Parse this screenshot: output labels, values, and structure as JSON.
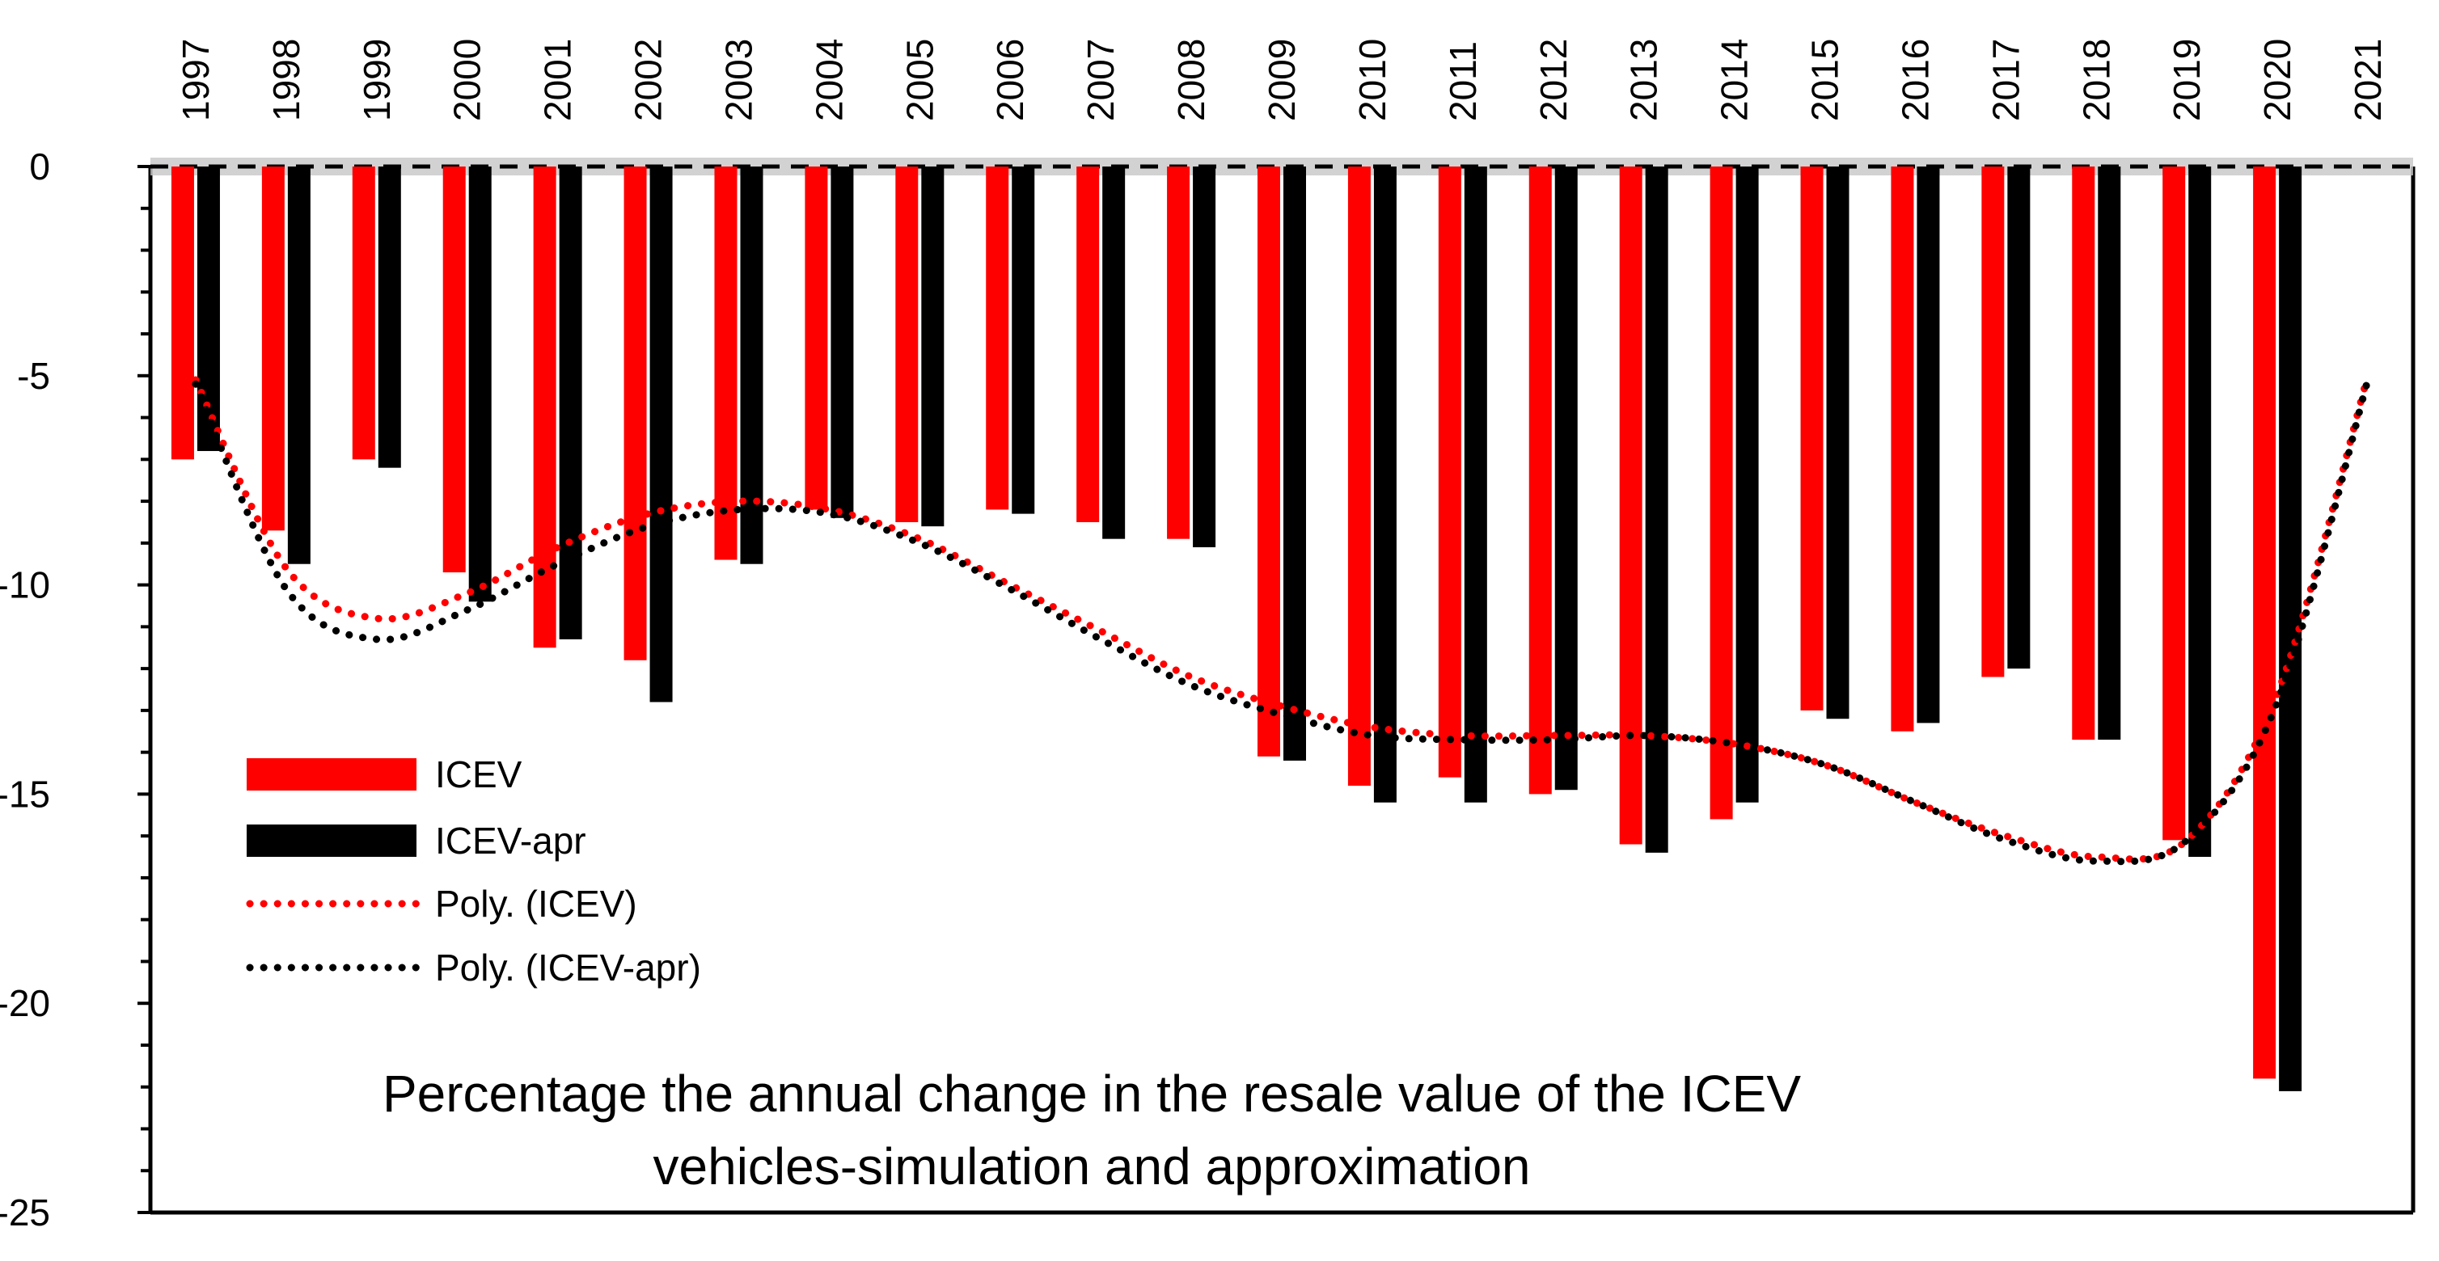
{
  "chart_data": {
    "type": "bar",
    "title": "Percentage the annual change in the resale value of the ICEV vehicles-simulation and approximation",
    "title_lines": [
      "Percentage the annual change in the resale value of the ICEV",
      "vehicles-simulation and approximation"
    ],
    "categories": [
      "1997",
      "1998",
      "1999",
      "2000",
      "2001",
      "2002",
      "2003",
      "2004",
      "2005",
      "2006",
      "2007",
      "2008",
      "2009",
      "2010",
      "2011",
      "2012",
      "2013",
      "2014",
      "2015",
      "2016",
      "2017",
      "2018",
      "2019",
      "2020",
      "2021"
    ],
    "ylim": [
      -25,
      0
    ],
    "yticks": [
      0,
      -5,
      -10,
      -15,
      -20,
      -25
    ],
    "ytick_labels": [
      "0",
      "-5",
      "-10",
      "-15",
      "-20",
      "-25"
    ],
    "x_axis_position": "top",
    "grid": false,
    "legend_position": "left-lower",
    "series": [
      {
        "name": "ICEV",
        "kind": "bar",
        "color": "#ff0000",
        "values": [
          -7.0,
          -8.7,
          -7.0,
          -9.7,
          -11.5,
          -11.8,
          -9.4,
          -8.2,
          -8.5,
          -8.2,
          -8.5,
          -8.9,
          -14.1,
          -14.8,
          -14.6,
          -15.0,
          -16.2,
          -15.6,
          -13.0,
          -13.5,
          -12.2,
          -13.7,
          -16.1,
          -21.8,
          null
        ]
      },
      {
        "name": "ICEV-apr",
        "kind": "bar",
        "color": "#000000",
        "values": [
          -6.8,
          -9.5,
          -7.2,
          -10.4,
          -11.3,
          -12.8,
          -9.5,
          -8.4,
          -8.6,
          -8.3,
          -8.9,
          -9.1,
          -14.2,
          -15.2,
          -15.2,
          -14.9,
          -16.4,
          -15.2,
          -13.2,
          -13.3,
          -12.0,
          -13.7,
          -16.5,
          -22.1,
          null
        ]
      },
      {
        "name": "Poly. (ICEV)",
        "kind": "trendline",
        "style": "dotted",
        "color": "#ff0000",
        "values": [
          -5.1,
          -9.6,
          -10.8,
          -10.2,
          -9.1,
          -8.3,
          -8.0,
          -8.2,
          -8.9,
          -10.0,
          -11.1,
          -12.2,
          -12.9,
          -13.4,
          -13.6,
          -13.6,
          -13.6,
          -13.8,
          -14.3,
          -15.2,
          -16.0,
          -16.5,
          -16.1,
          -12.6,
          -5.0
        ]
      },
      {
        "name": "Poly. (ICEV-apr)",
        "kind": "trendline",
        "style": "dotted",
        "color": "#000000",
        "values": [
          -5.2,
          -10.1,
          -11.3,
          -10.6,
          -9.5,
          -8.6,
          -8.2,
          -8.3,
          -9.0,
          -10.1,
          -11.3,
          -12.4,
          -13.1,
          -13.6,
          -13.7,
          -13.7,
          -13.6,
          -13.8,
          -14.3,
          -15.2,
          -16.1,
          -16.6,
          -16.1,
          -12.8,
          -5.1
        ]
      }
    ]
  }
}
